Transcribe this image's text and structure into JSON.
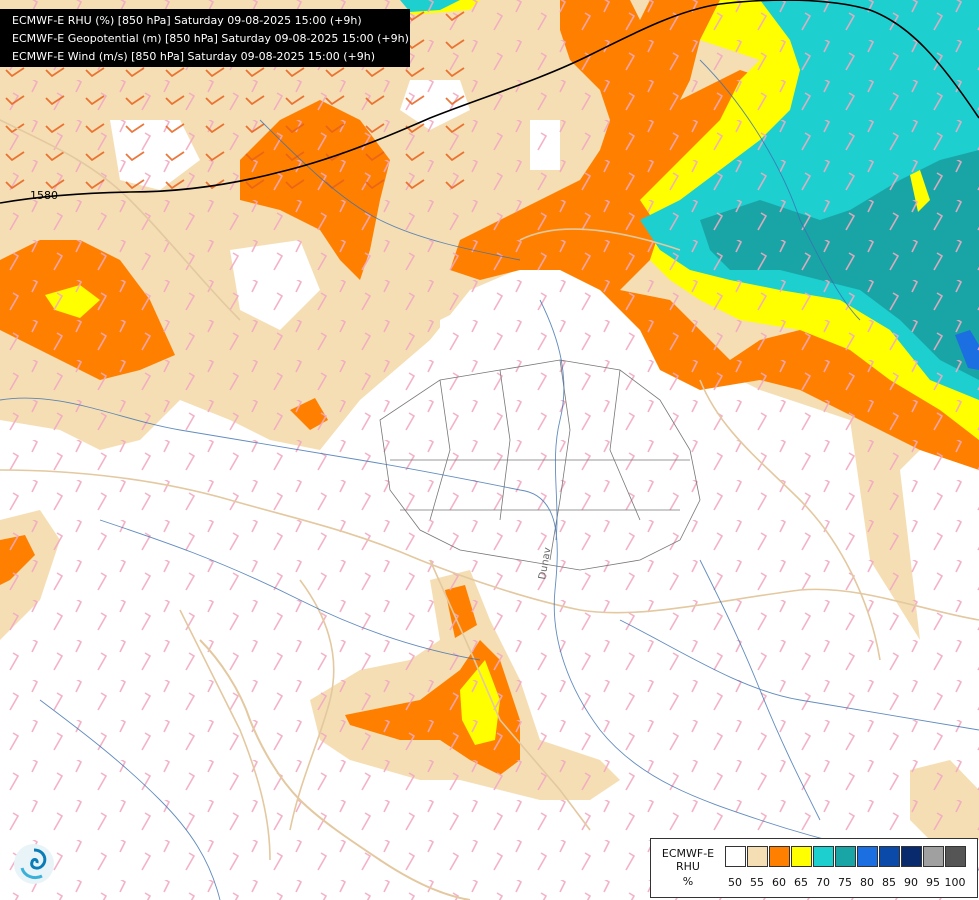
{
  "header": {
    "line1": "ECMWF-E RHU (%) [850 hPa] Saturday 09-08-2025 15:00 (+9h)",
    "line2": "ECMWF-E Geopotential (m) [850 hPa] Saturday 09-08-2025 15:00 (+9h)",
    "line3": "ECMWF-E Wind (m/s) [850 hPa] Saturday 09-08-2025 15:00 (+9h)"
  },
  "contour": {
    "label": "1580"
  },
  "river_label": "Dunav",
  "legend": {
    "title_line1": "ECMWF-E",
    "title_line2": "RHU",
    "unit": "%",
    "levels": [
      "50",
      "55",
      "60",
      "65",
      "70",
      "75",
      "80",
      "85",
      "90",
      "95",
      "100"
    ],
    "colors": [
      "#ffffff",
      "#f5deb3",
      "#ff8000",
      "#ffff00",
      "#1ecfd0",
      "#19a5a5",
      "#1c6fe0",
      "#0b4aa8",
      "#0a2a6e",
      "#a0a0a0",
      "#555555"
    ]
  },
  "logo": {
    "icon": "ecmwf-swirl-icon"
  }
}
